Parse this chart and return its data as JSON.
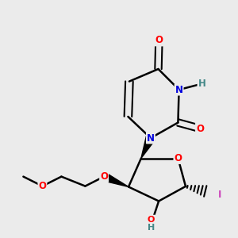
{
  "background_color": "#ebebeb",
  "bond_color": "#000000",
  "atom_colors": {
    "O": "#ff0000",
    "N": "#0000dd",
    "H": "#448888",
    "I": "#cc44bb",
    "C": "#000000"
  },
  "figsize": [
    3.0,
    3.0
  ],
  "dpi": 100
}
